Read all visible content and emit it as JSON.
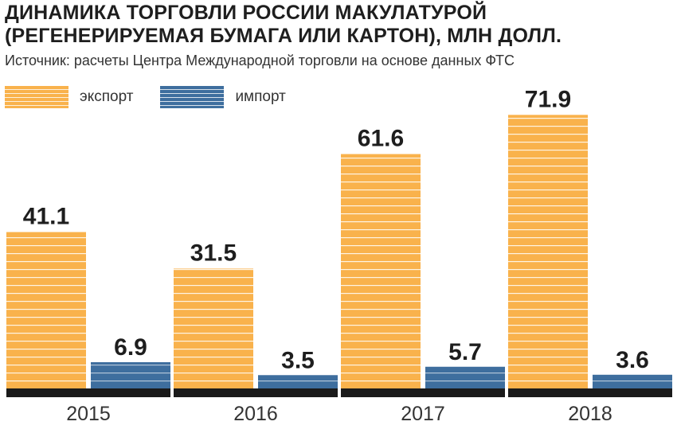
{
  "title": "ДИНАМИКА ТОРГОВЛИ РОССИИ МАКУЛАТУРОЙ (РЕГЕНЕРИРУЕМАЯ БУМАГА ИЛИ КАРТОН), МЛН ДОЛЛ.",
  "source": "Источник: расчеты Центра Международной торговли на основе данных ФТС",
  "colors": {
    "export": "#f9b24c",
    "import": "#3e6e9e",
    "base": "#1a1a1a"
  },
  "chart_data": {
    "type": "bar",
    "categories": [
      "2015",
      "2016",
      "2017",
      "2018"
    ],
    "series": [
      {
        "name": "экспорт",
        "values": [
          41.1,
          31.5,
          61.6,
          71.9
        ]
      },
      {
        "name": "импорт",
        "values": [
          6.9,
          3.5,
          5.7,
          3.6
        ]
      }
    ],
    "data_labels": {
      "export": [
        "41.1",
        "31.5",
        "61.6",
        "71.9"
      ],
      "import": [
        "6.9",
        "3.5",
        "5.7",
        "3.6"
      ]
    },
    "legend_position": "top-left",
    "grid": false
  }
}
